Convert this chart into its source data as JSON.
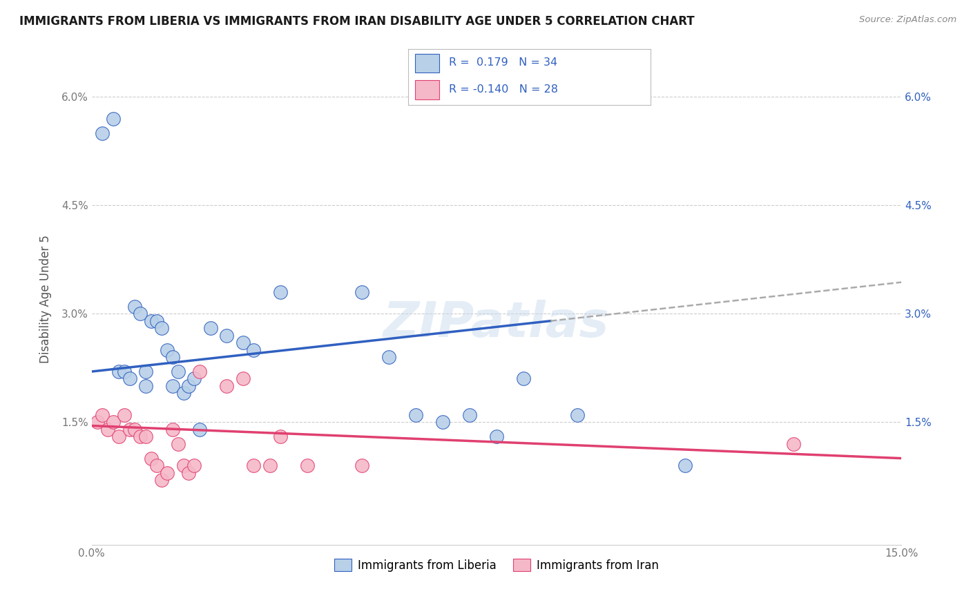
{
  "title": "IMMIGRANTS FROM LIBERIA VS IMMIGRANTS FROM IRAN DISABILITY AGE UNDER 5 CORRELATION CHART",
  "source": "Source: ZipAtlas.com",
  "ylabel": "Disability Age Under 5",
  "xmin": 0.0,
  "xmax": 0.15,
  "ymin": -0.002,
  "ymax": 0.066,
  "yticks": [
    0.015,
    0.03,
    0.045,
    0.06
  ],
  "ytick_labels": [
    "1.5%",
    "3.0%",
    "4.5%",
    "6.0%"
  ],
  "xticks": [
    0.0,
    0.05,
    0.1,
    0.15
  ],
  "xtick_labels": [
    "0.0%",
    "",
    "",
    "15.0%"
  ],
  "color_liberia": "#b8d0e8",
  "color_iran": "#f5b8c8",
  "color_line_liberia": "#3060c0",
  "color_line_iran": "#e04070",
  "color_dashed": "#aaaaaa",
  "watermark": "ZIPatlas",
  "background_color": "#ffffff",
  "grid_color": "#cccccc",
  "liberia_x": [
    0.002,
    0.004,
    0.005,
    0.006,
    0.007,
    0.008,
    0.009,
    0.01,
    0.01,
    0.011,
    0.012,
    0.013,
    0.014,
    0.015,
    0.015,
    0.016,
    0.017,
    0.018,
    0.019,
    0.02,
    0.022,
    0.025,
    0.028,
    0.03,
    0.035,
    0.05,
    0.055,
    0.06,
    0.065,
    0.07,
    0.075,
    0.08,
    0.09,
    0.11
  ],
  "liberia_y": [
    0.055,
    0.057,
    0.022,
    0.022,
    0.021,
    0.031,
    0.03,
    0.02,
    0.022,
    0.029,
    0.029,
    0.028,
    0.025,
    0.024,
    0.02,
    0.022,
    0.019,
    0.02,
    0.021,
    0.014,
    0.028,
    0.027,
    0.026,
    0.025,
    0.033,
    0.033,
    0.024,
    0.016,
    0.015,
    0.016,
    0.013,
    0.021,
    0.016,
    0.009
  ],
  "iran_x": [
    0.001,
    0.002,
    0.003,
    0.004,
    0.005,
    0.006,
    0.007,
    0.008,
    0.009,
    0.01,
    0.011,
    0.012,
    0.013,
    0.014,
    0.015,
    0.016,
    0.017,
    0.018,
    0.019,
    0.02,
    0.025,
    0.028,
    0.03,
    0.033,
    0.035,
    0.04,
    0.05,
    0.13
  ],
  "iran_y": [
    0.015,
    0.016,
    0.014,
    0.015,
    0.013,
    0.016,
    0.014,
    0.014,
    0.013,
    0.013,
    0.01,
    0.009,
    0.007,
    0.008,
    0.014,
    0.012,
    0.009,
    0.008,
    0.009,
    0.022,
    0.02,
    0.021,
    0.009,
    0.009,
    0.013,
    0.009,
    0.009,
    0.012
  ],
  "solid_line_end_x": 0.085,
  "dashed_line_start_x": 0.085,
  "dashed_line_end_x": 0.15
}
